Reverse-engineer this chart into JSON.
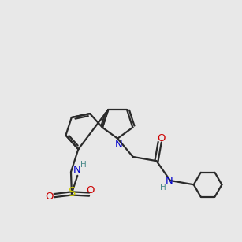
{
  "bg_color": "#e8e8e8",
  "bond_color": "#2a2a2a",
  "N_color": "#0000cc",
  "O_color": "#cc0000",
  "S_color": "#cccc00",
  "H_color": "#4a8a8a",
  "font_size": 8.5,
  "bond_width": 1.6,
  "figsize": [
    3.0,
    3.0
  ],
  "dpi": 100
}
